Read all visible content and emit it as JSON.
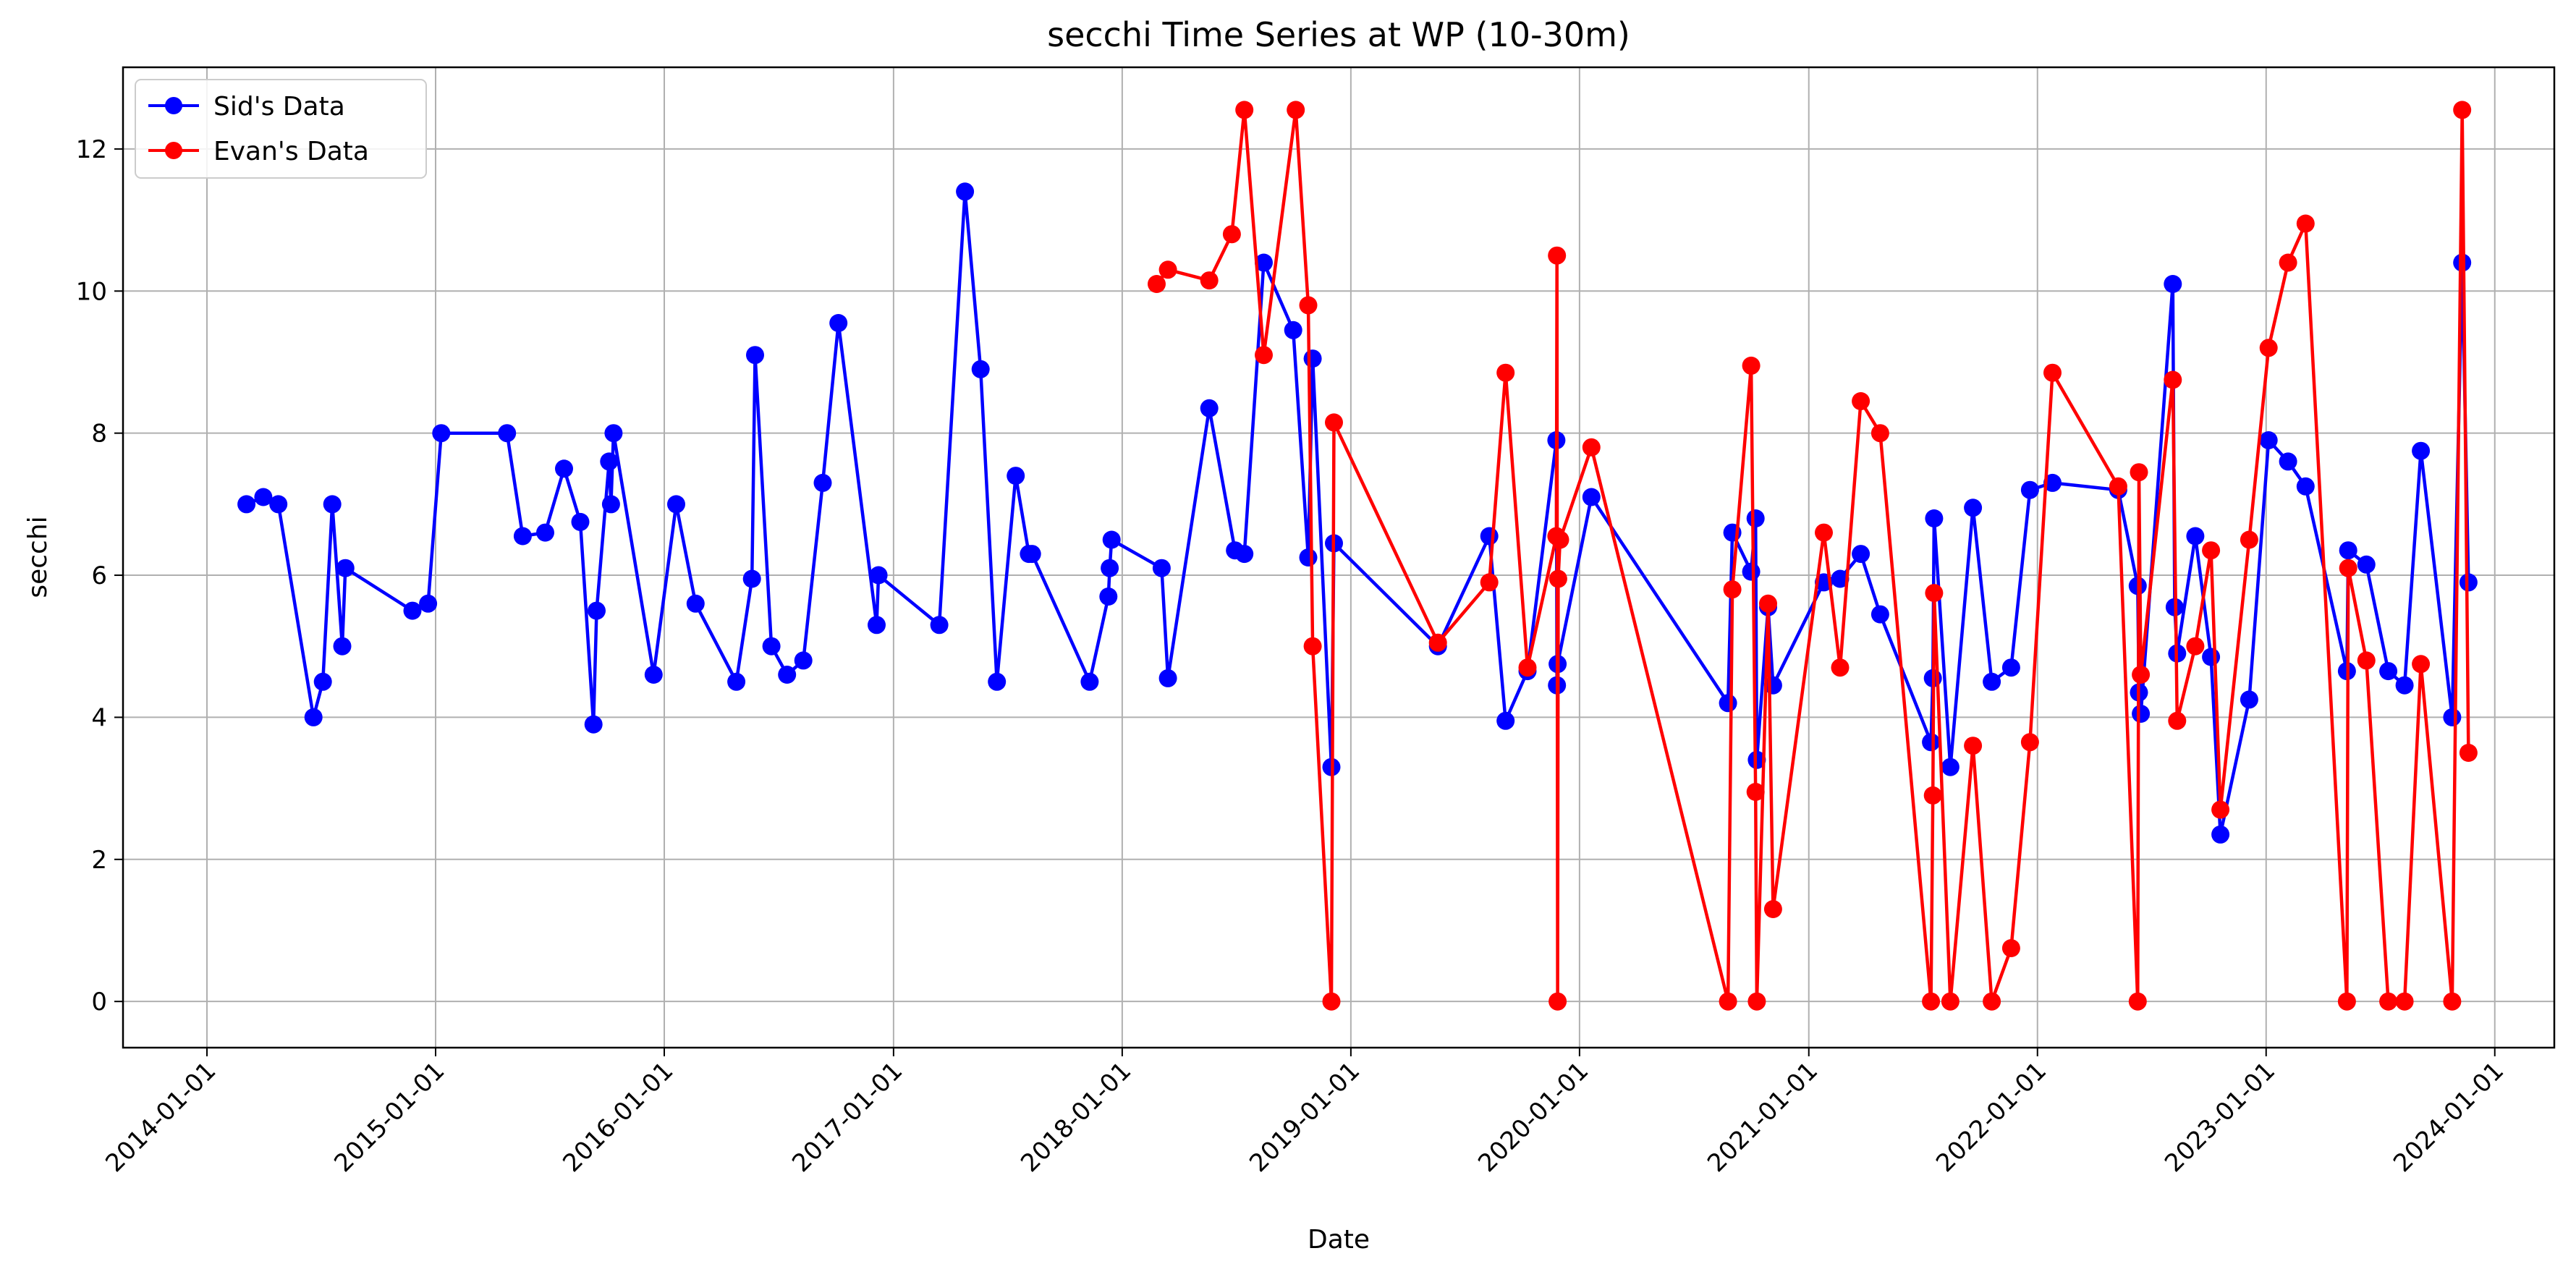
{
  "chart_data": {
    "type": "line",
    "title": "secchi Time Series at WP (10-30m)",
    "xlabel": "Date",
    "ylabel": "secchi",
    "x_axis_type": "date",
    "xlim": [
      "2013-08-20",
      "2024-04-05"
    ],
    "ylim": [
      -0.65,
      13.15
    ],
    "x_ticks": [
      "2014-01-01",
      "2015-01-01",
      "2016-01-01",
      "2017-01-01",
      "2018-01-01",
      "2019-01-01",
      "2020-01-01",
      "2021-01-01",
      "2022-01-01",
      "2023-01-01",
      "2024-01-01"
    ],
    "y_ticks": [
      0,
      2,
      4,
      6,
      8,
      10,
      12
    ],
    "y_tick_labels": [
      "0",
      "2",
      "4",
      "6",
      "8",
      "10",
      "12"
    ],
    "grid": true,
    "legend_position": "upper-left",
    "series": [
      {
        "name": "Sid's Data",
        "color": "#0000ff",
        "marker": "circle",
        "points": [
          {
            "x": "2014-03-05",
            "y": 7.0
          },
          {
            "x": "2014-04-01",
            "y": 7.1
          },
          {
            "x": "2014-04-25",
            "y": 7.0
          },
          {
            "x": "2014-06-20",
            "y": 4.0
          },
          {
            "x": "2014-07-05",
            "y": 4.5
          },
          {
            "x": "2014-07-20",
            "y": 7.0
          },
          {
            "x": "2014-08-05",
            "y": 5.0
          },
          {
            "x": "2014-08-10",
            "y": 6.1
          },
          {
            "x": "2014-11-25",
            "y": 5.5
          },
          {
            "x": "2014-12-20",
            "y": 5.6
          },
          {
            "x": "2015-01-10",
            "y": 8.0
          },
          {
            "x": "2015-04-25",
            "y": 8.0
          },
          {
            "x": "2015-05-20",
            "y": 6.55
          },
          {
            "x": "2015-06-25",
            "y": 6.6
          },
          {
            "x": "2015-07-25",
            "y": 7.5
          },
          {
            "x": "2015-08-20",
            "y": 6.75
          },
          {
            "x": "2015-09-10",
            "y": 3.9
          },
          {
            "x": "2015-09-15",
            "y": 5.5
          },
          {
            "x": "2015-10-05",
            "y": 7.6
          },
          {
            "x": "2015-10-08",
            "y": 7.0
          },
          {
            "x": "2015-10-12",
            "y": 8.0
          },
          {
            "x": "2015-12-15",
            "y": 4.6
          },
          {
            "x": "2016-01-20",
            "y": 7.0
          },
          {
            "x": "2016-02-20",
            "y": 5.6
          },
          {
            "x": "2016-04-25",
            "y": 4.5
          },
          {
            "x": "2016-05-20",
            "y": 5.95
          },
          {
            "x": "2016-05-25",
            "y": 9.1
          },
          {
            "x": "2016-06-20",
            "y": 5.0
          },
          {
            "x": "2016-07-15",
            "y": 4.6
          },
          {
            "x": "2016-08-10",
            "y": 4.8
          },
          {
            "x": "2016-09-10",
            "y": 7.3
          },
          {
            "x": "2016-10-05",
            "y": 9.55
          },
          {
            "x": "2016-12-05",
            "y": 5.3
          },
          {
            "x": "2016-12-08",
            "y": 6.0
          },
          {
            "x": "2017-03-15",
            "y": 5.3
          },
          {
            "x": "2017-04-25",
            "y": 11.4
          },
          {
            "x": "2017-05-20",
            "y": 8.9
          },
          {
            "x": "2017-06-15",
            "y": 4.5
          },
          {
            "x": "2017-07-15",
            "y": 7.4
          },
          {
            "x": "2017-08-05",
            "y": 6.3
          },
          {
            "x": "2017-08-10",
            "y": 6.3
          },
          {
            "x": "2017-11-10",
            "y": 4.5
          },
          {
            "x": "2017-12-10",
            "y": 5.7
          },
          {
            "x": "2017-12-12",
            "y": 6.1
          },
          {
            "x": "2017-12-15",
            "y": 6.5
          },
          {
            "x": "2018-03-05",
            "y": 6.1
          },
          {
            "x": "2018-03-15",
            "y": 4.55
          },
          {
            "x": "2018-05-20",
            "y": 8.35
          },
          {
            "x": "2018-06-30",
            "y": 6.35
          },
          {
            "x": "2018-07-15",
            "y": 6.3
          },
          {
            "x": "2018-08-15",
            "y": 10.4
          },
          {
            "x": "2018-10-01",
            "y": 9.45
          },
          {
            "x": "2018-10-25",
            "y": 6.25
          },
          {
            "x": "2018-11-01",
            "y": 9.05
          },
          {
            "x": "2018-12-01",
            "y": 3.3
          },
          {
            "x": "2018-12-05",
            "y": 6.45
          },
          {
            "x": "2019-05-20",
            "y": 5.0
          },
          {
            "x": "2019-08-10",
            "y": 6.55
          },
          {
            "x": "2019-09-05",
            "y": 3.95
          },
          {
            "x": "2019-10-10",
            "y": 4.65
          },
          {
            "x": "2019-11-25",
            "y": 7.9
          },
          {
            "x": "2019-11-26",
            "y": 4.45
          },
          {
            "x": "2019-11-27",
            "y": 4.75
          },
          {
            "x": "2020-01-20",
            "y": 7.1
          },
          {
            "x": "2020-08-25",
            "y": 4.2
          },
          {
            "x": "2020-09-01",
            "y": 6.6
          },
          {
            "x": "2020-10-01",
            "y": 6.05
          },
          {
            "x": "2020-10-08",
            "y": 6.8
          },
          {
            "x": "2020-10-10",
            "y": 3.4
          },
          {
            "x": "2020-10-28",
            "y": 5.55
          },
          {
            "x": "2020-11-05",
            "y": 4.45
          },
          {
            "x": "2021-01-25",
            "y": 5.9
          },
          {
            "x": "2021-02-20",
            "y": 5.95
          },
          {
            "x": "2021-03-25",
            "y": 6.3
          },
          {
            "x": "2021-04-25",
            "y": 5.45
          },
          {
            "x": "2021-07-15",
            "y": 3.65
          },
          {
            "x": "2021-07-18",
            "y": 4.55
          },
          {
            "x": "2021-07-20",
            "y": 6.8
          },
          {
            "x": "2021-08-15",
            "y": 3.3
          },
          {
            "x": "2021-09-20",
            "y": 6.95
          },
          {
            "x": "2021-10-20",
            "y": 4.5
          },
          {
            "x": "2021-11-20",
            "y": 4.7
          },
          {
            "x": "2021-12-20",
            "y": 7.2
          },
          {
            "x": "2022-01-25",
            "y": 7.3
          },
          {
            "x": "2022-05-10",
            "y": 7.2
          },
          {
            "x": "2022-06-10",
            "y": 5.85
          },
          {
            "x": "2022-06-12",
            "y": 4.35
          },
          {
            "x": "2022-06-15",
            "y": 4.05
          },
          {
            "x": "2022-08-05",
            "y": 10.1
          },
          {
            "x": "2022-08-08",
            "y": 5.55
          },
          {
            "x": "2022-08-12",
            "y": 4.9
          },
          {
            "x": "2022-09-10",
            "y": 6.55
          },
          {
            "x": "2022-10-05",
            "y": 4.85
          },
          {
            "x": "2022-10-20",
            "y": 2.35
          },
          {
            "x": "2022-12-05",
            "y": 4.25
          },
          {
            "x": "2023-01-05",
            "y": 7.9
          },
          {
            "x": "2023-02-05",
            "y": 7.6
          },
          {
            "x": "2023-03-05",
            "y": 7.25
          },
          {
            "x": "2023-05-10",
            "y": 4.65
          },
          {
            "x": "2023-05-12",
            "y": 6.35
          },
          {
            "x": "2023-06-10",
            "y": 6.15
          },
          {
            "x": "2023-07-15",
            "y": 4.65
          },
          {
            "x": "2023-08-10",
            "y": 4.45
          },
          {
            "x": "2023-09-05",
            "y": 7.75
          },
          {
            "x": "2023-10-25",
            "y": 4.0
          },
          {
            "x": "2023-11-10",
            "y": 10.4
          },
          {
            "x": "2023-11-20",
            "y": 5.9
          }
        ]
      },
      {
        "name": "Evan's Data",
        "color": "#ff0000",
        "marker": "circle",
        "points": [
          {
            "x": "2018-02-25",
            "y": 10.1
          },
          {
            "x": "2018-03-15",
            "y": 10.3
          },
          {
            "x": "2018-05-20",
            "y": 10.15
          },
          {
            "x": "2018-06-25",
            "y": 10.8
          },
          {
            "x": "2018-07-15",
            "y": 12.55
          },
          {
            "x": "2018-08-15",
            "y": 9.1
          },
          {
            "x": "2018-10-05",
            "y": 12.55
          },
          {
            "x": "2018-10-25",
            "y": 9.8
          },
          {
            "x": "2018-11-01",
            "y": 5.0
          },
          {
            "x": "2018-12-01",
            "y": 0.0
          },
          {
            "x": "2018-12-05",
            "y": 8.15
          },
          {
            "x": "2019-05-20",
            "y": 5.05
          },
          {
            "x": "2019-08-10",
            "y": 5.9
          },
          {
            "x": "2019-09-05",
            "y": 8.85
          },
          {
            "x": "2019-10-10",
            "y": 4.7
          },
          {
            "x": "2019-11-25",
            "y": 6.55
          },
          {
            "x": "2019-11-26",
            "y": 10.5
          },
          {
            "x": "2019-11-27",
            "y": 0.0
          },
          {
            "x": "2019-11-28",
            "y": 5.95
          },
          {
            "x": "2019-12-01",
            "y": 6.5
          },
          {
            "x": "2020-01-20",
            "y": 7.8
          },
          {
            "x": "2020-08-25",
            "y": 0.0
          },
          {
            "x": "2020-09-01",
            "y": 5.8
          },
          {
            "x": "2020-10-01",
            "y": 8.95
          },
          {
            "x": "2020-10-08",
            "y": 2.95
          },
          {
            "x": "2020-10-10",
            "y": 0.0
          },
          {
            "x": "2020-10-28",
            "y": 5.6
          },
          {
            "x": "2020-11-05",
            "y": 1.3
          },
          {
            "x": "2021-01-25",
            "y": 6.6
          },
          {
            "x": "2021-02-20",
            "y": 4.7
          },
          {
            "x": "2021-03-25",
            "y": 8.45
          },
          {
            "x": "2021-04-25",
            "y": 8.0
          },
          {
            "x": "2021-07-15",
            "y": 0.0
          },
          {
            "x": "2021-07-18",
            "y": 2.9
          },
          {
            "x": "2021-07-20",
            "y": 5.75
          },
          {
            "x": "2021-08-15",
            "y": 0.0
          },
          {
            "x": "2021-09-20",
            "y": 3.6
          },
          {
            "x": "2021-10-20",
            "y": 0.0
          },
          {
            "x": "2021-11-20",
            "y": 0.75
          },
          {
            "x": "2021-12-20",
            "y": 3.65
          },
          {
            "x": "2022-01-25",
            "y": 8.85
          },
          {
            "x": "2022-05-10",
            "y": 7.25
          },
          {
            "x": "2022-06-10",
            "y": 0.0
          },
          {
            "x": "2022-06-12",
            "y": 7.45
          },
          {
            "x": "2022-06-15",
            "y": 4.6
          },
          {
            "x": "2022-08-05",
            "y": 8.75
          },
          {
            "x": "2022-08-12",
            "y": 3.95
          },
          {
            "x": "2022-09-10",
            "y": 5.0
          },
          {
            "x": "2022-10-05",
            "y": 6.35
          },
          {
            "x": "2022-10-20",
            "y": 2.7
          },
          {
            "x": "2022-12-05",
            "y": 6.5
          },
          {
            "x": "2023-01-05",
            "y": 9.2
          },
          {
            "x": "2023-02-05",
            "y": 10.4
          },
          {
            "x": "2023-03-05",
            "y": 10.95
          },
          {
            "x": "2023-05-10",
            "y": 0.0
          },
          {
            "x": "2023-05-12",
            "y": 6.1
          },
          {
            "x": "2023-06-10",
            "y": 4.8
          },
          {
            "x": "2023-07-15",
            "y": 0.0
          },
          {
            "x": "2023-08-10",
            "y": 0.0
          },
          {
            "x": "2023-09-05",
            "y": 4.75
          },
          {
            "x": "2023-10-25",
            "y": 0.0
          },
          {
            "x": "2023-11-10",
            "y": 12.55
          },
          {
            "x": "2023-11-20",
            "y": 3.5
          }
        ]
      }
    ]
  }
}
